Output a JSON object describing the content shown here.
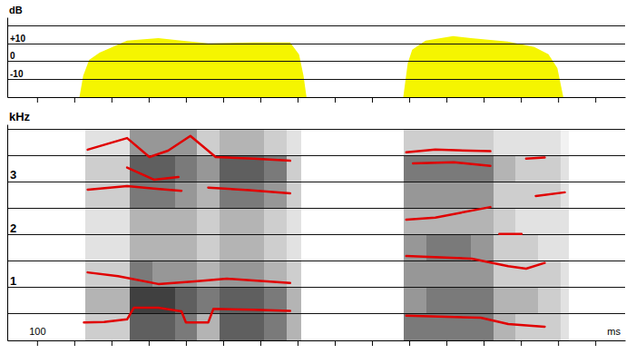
{
  "chart_data": [
    {
      "type": "area",
      "ylabel": "dB",
      "color": "#f5f500",
      "xlim": [
        60,
        890
      ],
      "xticks": [
        100,
        150,
        200,
        250,
        300,
        350,
        400,
        450,
        500,
        550,
        600,
        650,
        700,
        750,
        800,
        850
      ],
      "tick_labels": "y",
      "ylim": [
        -20,
        25
      ],
      "yticks": [
        {
          "value": 10,
          "label": "+10"
        },
        0,
        -10
      ],
      "y_minor_ticks": [
        20
      ],
      "grid": true,
      "x": [
        157,
        162,
        170,
        184,
        221,
        263,
        294,
        330,
        391,
        440,
        452,
        458,
        462,
        null,
        592,
        598,
        604,
        622,
        659,
        683,
        732,
        768,
        787,
        799,
        807
      ],
      "values": [
        -20,
        -8,
        1,
        5,
        11.8,
        13.3,
        11.8,
        10.3,
        10.8,
        10.8,
        4,
        -8,
        -20,
        null,
        -20,
        -1,
        6.7,
        11.8,
        14.4,
        13.3,
        11.3,
        8.2,
        4.1,
        -3.6,
        -20
      ]
    },
    {
      "type": "line",
      "ylabel": "kHz",
      "xlabel": "ms",
      "xlim": [
        60,
        890
      ],
      "xticks": [
        100
      ],
      "x_minor_ticks": [
        150,
        200,
        250,
        300,
        350,
        400,
        450,
        500,
        550,
        600,
        650,
        700,
        750,
        800,
        850
      ],
      "ylim": [
        0,
        4.1
      ],
      "yticks": [
        1,
        2,
        3
      ],
      "y_minor_ticks": [
        0.5,
        1.5,
        2.5,
        3.5,
        4
      ],
      "grid": true,
      "zlim": [
        0,
        10
      ],
      "cells": [
        {
          "x_edges": [
            165,
            195,
            225,
            255,
            285,
            315,
            345,
            375,
            405,
            435,
            455
          ],
          "y_edges": [
            0,
            0.5,
            1,
            1.5,
            2,
            2.5,
            3,
            3.5,
            4
          ],
          "z": [
            [
              3,
              3,
              7,
              7,
              6,
              4,
              7,
              7,
              6,
              4
            ],
            [
              4,
              4,
              8,
              8,
              7,
              6,
              7,
              7,
              6,
              4
            ],
            [
              3,
              3,
              6,
              5,
              5,
              4,
              5,
              5,
              4,
              3
            ],
            [
              2,
              2,
              4,
              4,
              4,
              3,
              4,
              4,
              3,
              2
            ],
            [
              2,
              2,
              4,
              4,
              4,
              3,
              4,
              4,
              3,
              2
            ],
            [
              3,
              3,
              6,
              6,
              5,
              4,
              6,
              6,
              5,
              3
            ],
            [
              3,
              3,
              7,
              7,
              6,
              5,
              7,
              7,
              6,
              3
            ],
            [
              2,
              2,
              5,
              5,
              5,
              3,
              4,
              4,
              3,
              2
            ]
          ]
        },
        {
          "x_edges": [
            593,
            623,
            653,
            683,
            713,
            743,
            773,
            803,
            815
          ],
          "y_edges": [
            0,
            0.5,
            1,
            1.5,
            2,
            2.5,
            3,
            3.5,
            4
          ],
          "z": [
            [
              6,
              6,
              6,
              6,
              4,
              3,
              3,
              2
            ],
            [
              5,
              6,
              6,
              6,
              4,
              4,
              3,
              2
            ],
            [
              5,
              5,
              5,
              5,
              3,
              3,
              3,
              2
            ],
            [
              5,
              6,
              6,
              5,
              3,
              3,
              2,
              2
            ],
            [
              4,
              4,
              4,
              4,
              3,
              2,
              2,
              2
            ],
            [
              5,
              5,
              5,
              5,
              3,
              3,
              3,
              2
            ],
            [
              6,
              6,
              6,
              6,
              4,
              3,
              3,
              2
            ],
            [
              3,
              3,
              3,
              3,
              2,
              2,
              2,
              1
            ]
          ]
        }
      ],
      "series": [
        {
          "color": "#e00000",
          "x": [
            163,
            190,
            221,
            230,
            263,
            294,
            300,
            330,
            337,
            391,
            440,
            null,
            596,
            696,
            733,
            782
          ],
          "values": [
            0.34,
            0.35,
            0.4,
            0.62,
            0.62,
            0.55,
            0.34,
            0.34,
            0.6,
            0.58,
            0.56,
            null,
            0.47,
            0.43,
            0.31,
            0.26
          ]
        },
        {
          "color": "#e00000",
          "x": [
            168,
            209,
            263,
            312,
            355,
            440,
            null,
            596,
            684,
            733,
            757,
            782
          ],
          "values": [
            1.29,
            1.22,
            1.07,
            1.12,
            1.17,
            1.09,
            null,
            1.6,
            1.55,
            1.41,
            1.36,
            1.47
          ]
        },
        {
          "color": "#e00000",
          "x": [
            168,
            221,
            257,
            294,
            null,
            330,
            385,
            440,
            null,
            596,
            635,
            709,
            null,
            721,
            751,
            null,
            770,
            809
          ],
          "values": [
            2.86,
            2.93,
            2.88,
            2.84,
            null,
            2.9,
            2.85,
            2.79,
            null,
            2.29,
            2.33,
            2.53,
            null,
            2.02,
            2.02,
            null,
            2.74,
            2.81
          ]
        },
        {
          "color": "#e00000",
          "x": [
            168,
            221,
            251,
            276,
            306,
            340,
            391,
            440,
            null,
            596,
            635,
            709,
            null,
            757,
            782
          ],
          "values": [
            3.62,
            3.84,
            3.48,
            3.6,
            3.88,
            3.48,
            3.45,
            3.41,
            null,
            3.57,
            3.62,
            3.59,
            null,
            3.45,
            3.47
          ]
        },
        {
          "color": "#e00000",
          "x": [
            221,
            257,
            290
          ],
          "values": [
            3.28,
            3.05,
            3.1
          ]
        },
        {
          "color": "#e00000",
          "x": [
            605,
            660,
            709
          ],
          "values": [
            3.36,
            3.38,
            3.31
          ]
        }
      ]
    }
  ]
}
